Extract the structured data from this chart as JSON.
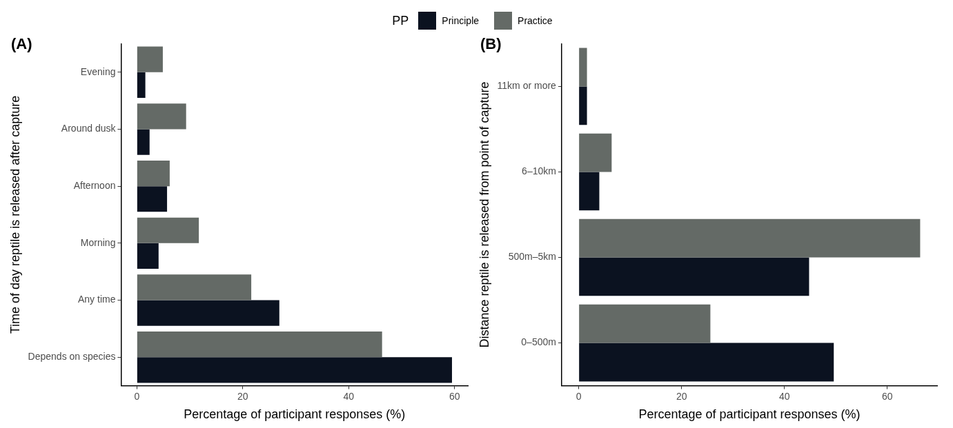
{
  "chart_data": [
    {
      "type": "bar",
      "title": "(A)",
      "orientation": "horizontal",
      "xlabel": "Percentage of participant responses (%)",
      "ylabel": "Time of day reptile is released after capture",
      "categories": [
        "Evening",
        "Around dusk",
        "Afternoon",
        "Morning",
        "Any time",
        "Depends on species"
      ],
      "series": [
        {
          "name": "Principle",
          "color": "#0b1220",
          "values": [
            1.6,
            2.4,
            5.7,
            4.1,
            26.9,
            59.5
          ]
        },
        {
          "name": "Practice",
          "color": "#646a66",
          "values": [
            4.9,
            9.3,
            6.2,
            11.7,
            21.6,
            46.3
          ]
        }
      ],
      "xlim": [
        -2.98,
        62.5
      ],
      "xticks": [
        0,
        20,
        40,
        60
      ],
      "grid": false,
      "legend": "top",
      "legend_title": "PP"
    },
    {
      "type": "bar",
      "title": "(B)",
      "orientation": "horizontal",
      "xlabel": "Percentage of participant responses (%)",
      "ylabel": "Distance reptile is released from point of capture",
      "categories": [
        "11km or more",
        "6–10km",
        "500m–5km",
        "0–500m"
      ],
      "series": [
        {
          "color": "#0b1220",
          "values": [
            1.6,
            4.0,
            44.8,
            49.6
          ]
        },
        {
          "color": "#646a66",
          "values": [
            1.6,
            6.4,
            66.4,
            25.6
          ]
        }
      ],
      "xlim": [
        -3.32,
        69.7
      ],
      "xticks": [
        0,
        20,
        40,
        60
      ],
      "grid": false
    }
  ]
}
